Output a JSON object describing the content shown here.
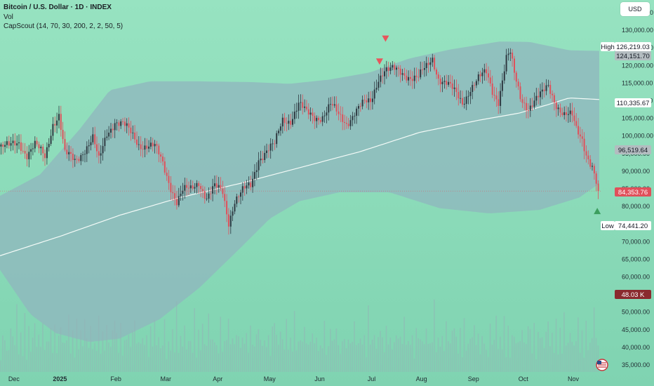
{
  "header": {
    "symbol": "Bitcoin / U.S. Dollar · 1D · INDEX",
    "volume_label": "Vol",
    "indicator": "CapScout (14, 70, 30, 200, 2, 2, 50, 5)",
    "currency": "USD"
  },
  "colors": {
    "up": "#2f3a42",
    "down": "#e0505a",
    "band": "#8fb7be",
    "ma": "#f4fbf8",
    "volume": "#93b3b7"
  },
  "chart_data": {
    "type": "candlestick",
    "title": "Bitcoin / U.S. Dollar · 1D · INDEX",
    "x_ticks": [
      "Dec",
      "2025",
      "Feb",
      "Mar",
      "Apr",
      "May",
      "Jun",
      "Jul",
      "Aug",
      "Sep",
      "Oct",
      "Nov"
    ],
    "y_ticks": [
      "135,000.00",
      "130,000.00",
      "125,000.00",
      "120,000.00",
      "115,000.00",
      "110,000.00",
      "105,000.00",
      "100,000.00",
      "95,000.00",
      "90,000.00",
      "85,000.00",
      "80,000.00",
      "75,000.00",
      "70,000.00",
      "65,000.00",
      "60,000.00",
      "55,000.00",
      "50,000.00",
      "45,000.00",
      "40,000.00",
      "35,000.00"
    ],
    "y_range": [
      33000,
      137000
    ],
    "close_path": [
      [
        0,
        97000
      ],
      [
        5,
        96500
      ],
      [
        10,
        98500
      ],
      [
        14,
        95000
      ],
      [
        18,
        97000
      ],
      [
        23,
        94000
      ],
      [
        27,
        104000
      ],
      [
        30,
        106000
      ],
      [
        33,
        94500
      ],
      [
        38,
        93000
      ],
      [
        42,
        96000
      ],
      [
        47,
        99000
      ],
      [
        50,
        92500
      ],
      [
        54,
        101000
      ],
      [
        58,
        104500
      ],
      [
        62,
        103000
      ],
      [
        66,
        100500
      ],
      [
        70,
        98000
      ],
      [
        74,
        97500
      ],
      [
        78,
        96500
      ],
      [
        82,
        92000
      ],
      [
        86,
        86000
      ],
      [
        89,
        81500
      ],
      [
        92,
        84000
      ],
      [
        96,
        84500
      ],
      [
        100,
        87500
      ],
      [
        104,
        82500
      ],
      [
        108,
        85000
      ],
      [
        112,
        84000
      ],
      [
        115,
        76000
      ],
      [
        118,
        82000
      ],
      [
        122,
        84000
      ],
      [
        126,
        85500
      ],
      [
        130,
        94000
      ],
      [
        134,
        96000
      ],
      [
        138,
        97000
      ],
      [
        142,
        104500
      ],
      [
        146,
        105000
      ],
      [
        150,
        109000
      ],
      [
        154,
        106000
      ],
      [
        158,
        105500
      ],
      [
        162,
        106000
      ],
      [
        166,
        108500
      ],
      [
        170,
        105500
      ],
      [
        174,
        104000
      ],
      [
        178,
        107000
      ],
      [
        182,
        108500
      ],
      [
        186,
        109500
      ],
      [
        190,
        117000
      ],
      [
        193,
        119000
      ],
      [
        195,
        118500
      ],
      [
        200,
        118000
      ],
      [
        205,
        117500
      ],
      [
        210,
        116500
      ],
      [
        214,
        119000
      ],
      [
        217,
        122000
      ],
      [
        220,
        117000
      ],
      [
        224,
        115000
      ],
      [
        228,
        112000
      ],
      [
        232,
        109500
      ],
      [
        236,
        114000
      ],
      [
        240,
        116000
      ],
      [
        244,
        117500
      ],
      [
        247,
        113000
      ],
      [
        250,
        110500
      ],
      [
        254,
        122000
      ],
      [
        256,
        123000
      ],
      [
        258,
        117000
      ],
      [
        261,
        111000
      ],
      [
        265,
        108500
      ],
      [
        268,
        110000
      ],
      [
        272,
        111500
      ],
      [
        275,
        114000
      ],
      [
        279,
        109500
      ],
      [
        283,
        106000
      ],
      [
        287,
        105000
      ],
      [
        289,
        101500
      ],
      [
        292,
        99500
      ],
      [
        294,
        95500
      ],
      [
        297,
        91500
      ],
      [
        299,
        86500
      ],
      [
        300,
        84353.76
      ]
    ],
    "ma200_path": [
      [
        0,
        66000
      ],
      [
        30,
        71500
      ],
      [
        60,
        77500
      ],
      [
        90,
        82500
      ],
      [
        120,
        86500
      ],
      [
        150,
        91000
      ],
      [
        180,
        95500
      ],
      [
        210,
        101000
      ],
      [
        240,
        104500
      ],
      [
        260,
        106500
      ],
      [
        275,
        109000
      ],
      [
        285,
        110800
      ],
      [
        300,
        110335.67
      ]
    ],
    "band_upper": [
      [
        0,
        83000
      ],
      [
        20,
        89000
      ],
      [
        40,
        102000
      ],
      [
        55,
        113000
      ],
      [
        75,
        115500
      ],
      [
        100,
        115500
      ],
      [
        125,
        115300
      ],
      [
        145,
        114800
      ],
      [
        165,
        116000
      ],
      [
        185,
        118000
      ],
      [
        205,
        122000
      ],
      [
        225,
        124500
      ],
      [
        250,
        126800
      ],
      [
        265,
        126700
      ],
      [
        285,
        124300
      ],
      [
        300,
        124151.7
      ]
    ],
    "band_lower": [
      [
        0,
        62000
      ],
      [
        15,
        49500
      ],
      [
        28,
        44000
      ],
      [
        45,
        41500
      ],
      [
        60,
        42500
      ],
      [
        80,
        48000
      ],
      [
        100,
        57000
      ],
      [
        120,
        68000
      ],
      [
        135,
        76500
      ],
      [
        150,
        81500
      ],
      [
        170,
        84000
      ],
      [
        195,
        84000
      ],
      [
        220,
        79500
      ],
      [
        245,
        78000
      ],
      [
        270,
        79000
      ],
      [
        290,
        82500
      ],
      [
        300,
        86500
      ]
    ],
    "volume_values": [
      22,
      30,
      45,
      18,
      25,
      40,
      35,
      28,
      60,
      22,
      33,
      25,
      48,
      20,
      38,
      26,
      30,
      52,
      24,
      35,
      28,
      42,
      30,
      25,
      55,
      36,
      28,
      40,
      22,
      33,
      45,
      30,
      26,
      38,
      48,
      28,
      34,
      25,
      44,
      30,
      36,
      28,
      50,
      32,
      26,
      40,
      30,
      24,
      36,
      46,
      28,
      34,
      26,
      42,
      30,
      25,
      38,
      60,
      33,
      28,
      40,
      30,
      26,
      45,
      32,
      28,
      38,
      50,
      30,
      26,
      36,
      28,
      44,
      30,
      24,
      38,
      32,
      46,
      28,
      34
    ],
    "volume_scale_max": "48.03 K",
    "price_tags": [
      {
        "label": "High",
        "value": "126,219.03",
        "price": 126219.03
      },
      {
        "value": "124,151.70",
        "price": 124151.7
      },
      {
        "value": "110,335.67",
        "price": 110335.67
      },
      {
        "value": "96,519.64",
        "price": 96519.64
      },
      {
        "value": "84,353.76",
        "price": 84353.76
      },
      {
        "label": "Low",
        "value": "74,441.20",
        "price": 74441.2
      },
      {
        "value": "48.03 K"
      }
    ],
    "signals": [
      {
        "type": "sell",
        "x": 190,
        "price": 121000
      },
      {
        "type": "sell",
        "x": 193,
        "price": 127500
      },
      {
        "type": "buy",
        "x": 299,
        "price": 78800
      }
    ]
  }
}
